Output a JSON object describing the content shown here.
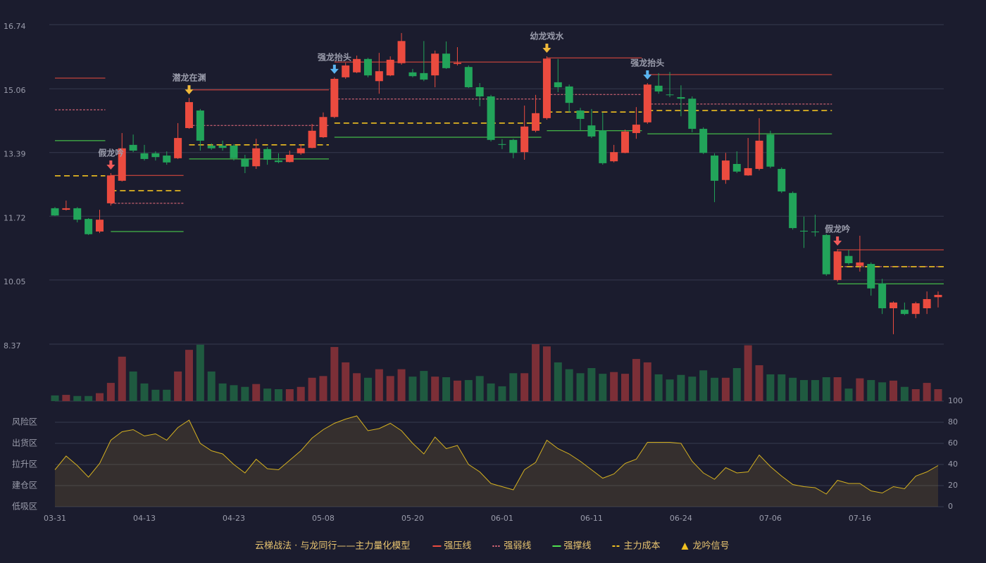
{
  "chart_data": {
    "type": "candlestick",
    "categories": [
      "03-31",
      null,
      null,
      null,
      null,
      null,
      null,
      null,
      "04-13",
      null,
      null,
      null,
      null,
      null,
      null,
      null,
      "04-23",
      null,
      null,
      null,
      null,
      null,
      null,
      null,
      "05-08",
      null,
      null,
      null,
      null,
      null,
      null,
      null,
      "05-20",
      null,
      null,
      null,
      null,
      null,
      null,
      null,
      "06-01",
      null,
      null,
      null,
      null,
      null,
      null,
      null,
      "06-11",
      null,
      null,
      null,
      null,
      null,
      null,
      null,
      "06-24",
      null,
      null,
      null,
      null,
      null,
      null,
      null,
      "07-06",
      null,
      null,
      null,
      null,
      null,
      null,
      null,
      "07-16",
      null,
      null,
      null,
      null,
      null,
      null,
      null
    ],
    "open": [
      11.93,
      11.89,
      11.93,
      11.65,
      11.32,
      12.06,
      12.65,
      13.59,
      13.37,
      13.37,
      13.31,
      13.24,
      14.03,
      14.49,
      13.57,
      13.57,
      13.57,
      13.22,
      13.03,
      13.48,
      13.18,
      13.14,
      13.37,
      13.51,
      13.79,
      14.32,
      15.36,
      15.49,
      15.84,
      15.26,
      15.41,
      15.73,
      15.49,
      15.47,
      15.41,
      15.98,
      15.71,
      15.63,
      15.1,
      14.86,
      13.61,
      13.72,
      13.4,
      13.96,
      14.29,
      15.23,
      15.12,
      14.49,
      14.1,
      13.97,
      13.16,
      13.38,
      13.9,
      14.18,
      15.14,
      14.91,
      14.84,
      14.8,
      14.01,
      13.31,
      12.67,
      13.09,
      12.79,
      12.96,
      13.86,
      12.96,
      12.33,
      11.34,
      11.32,
      11.23,
      10.05,
      10.68,
      10.42,
      10.47,
      9.96,
      9.31,
      9.27,
      9.16,
      9.31,
      9.6
    ],
    "close": [
      11.74,
      11.93,
      11.63,
      11.25,
      11.63,
      12.79,
      13.5,
      13.44,
      13.22,
      13.27,
      13.13,
      13.77,
      14.71,
      13.7,
      13.5,
      13.51,
      13.24,
      13.02,
      13.5,
      13.2,
      13.14,
      13.33,
      13.5,
      13.96,
      14.32,
      15.32,
      15.67,
      15.84,
      15.41,
      15.52,
      15.82,
      16.31,
      15.39,
      15.3,
      15.98,
      15.6,
      15.74,
      15.1,
      14.86,
      13.72,
      13.59,
      13.38,
      14.07,
      14.42,
      15.85,
      15.1,
      14.69,
      14.27,
      13.81,
      13.11,
      13.4,
      13.94,
      14.12,
      15.17,
      14.99,
      14.9,
      14.8,
      14.01,
      13.38,
      12.65,
      13.18,
      12.89,
      12.98,
      13.7,
      13.02,
      12.37,
      11.41,
      11.32,
      11.3,
      10.2,
      10.8,
      10.49,
      10.51,
      9.83,
      9.31,
      9.46,
      9.16,
      9.44,
      9.55,
      9.66
    ],
    "high": [
      11.96,
      12.13,
      11.96,
      11.67,
      11.89,
      12.85,
      13.9,
      13.86,
      13.59,
      13.42,
      13.42,
      14.16,
      14.82,
      14.53,
      13.63,
      13.7,
      13.61,
      13.33,
      13.75,
      13.53,
      13.37,
      13.44,
      13.61,
      14.14,
      14.44,
      15.36,
      15.74,
      15.93,
      15.87,
      16.0,
      15.91,
      16.52,
      15.58,
      16.31,
      16.06,
      16.3,
      16.15,
      15.67,
      15.21,
      14.9,
      13.74,
      13.75,
      14.62,
      14.9,
      15.91,
      15.84,
      15.17,
      14.56,
      14.53,
      14.44,
      13.59,
      13.99,
      14.58,
      15.21,
      15.47,
      15.5,
      15.15,
      14.86,
      14.05,
      13.37,
      13.38,
      13.42,
      13.77,
      14.29,
      13.96,
      13.0,
      12.37,
      11.71,
      11.76,
      11.26,
      10.86,
      10.84,
      11.21,
      10.51,
      10.08,
      9.49,
      9.46,
      9.48,
      9.75,
      9.75
    ],
    "low": [
      11.73,
      11.87,
      11.56,
      11.23,
      11.28,
      12.0,
      12.63,
      13.4,
      13.18,
      13.18,
      13.07,
      13.22,
      14.01,
      13.44,
      13.46,
      13.44,
      13.18,
      12.85,
      12.96,
      13.07,
      13.11,
      13.13,
      13.33,
      13.5,
      13.77,
      14.29,
      15.32,
      15.47,
      15.36,
      14.93,
      15.39,
      15.69,
      15.36,
      15.26,
      15.1,
      15.58,
      15.67,
      15.08,
      14.6,
      13.68,
      13.48,
      13.24,
      13.2,
      13.92,
      14.25,
      14.97,
      14.44,
      13.97,
      13.77,
      13.07,
      13.13,
      13.37,
      13.75,
      14.14,
      14.93,
      14.84,
      14.34,
      13.92,
      13.35,
      12.09,
      12.57,
      12.85,
      12.78,
      12.92,
      12.98,
      12.33,
      11.37,
      10.89,
      11.19,
      10.16,
      10.01,
      10.45,
      10.27,
      9.64,
      9.16,
      8.63,
      9.13,
      9.05,
      9.16,
      9.33
    ],
    "ylim": [
      8.37,
      16.74
    ],
    "yticks": [
      16.74,
      15.06,
      13.39,
      11.72,
      10.05,
      8.37
    ],
    "grid": true,
    "up_color": "#eb4b3f",
    "down_color": "#22a45a",
    "volume": {
      "values": [
        10,
        11,
        9,
        9,
        14,
        32,
        78,
        52,
        31,
        20,
        20,
        52,
        90,
        99,
        52,
        31,
        28,
        25,
        30,
        22,
        21,
        21,
        25,
        41,
        44,
        95,
        68,
        49,
        41,
        56,
        44,
        56,
        43,
        53,
        43,
        42,
        36,
        37,
        44,
        31,
        26,
        49,
        49,
        100,
        96,
        68,
        56,
        49,
        58,
        48,
        51,
        48,
        74,
        68,
        47,
        38,
        46,
        43,
        54,
        41,
        41,
        58,
        98,
        63,
        47,
        47,
        41,
        37,
        37,
        42,
        42,
        22,
        40,
        37,
        33,
        36,
        25,
        21,
        32,
        21
      ],
      "ylim": [
        0,
        100
      ],
      "up_color": "#7c2f37",
      "down_color": "#1f5a40"
    },
    "levels": [
      {
        "start": 0,
        "end": 4,
        "values": [
          15.34,
          14.51,
          13.7,
          12.78
        ]
      },
      {
        "start": 5,
        "end": 11,
        "values": [
          12.79,
          12.06,
          11.32,
          12.39
        ]
      },
      {
        "start": 12,
        "end": 24,
        "values": [
          15.03,
          14.1,
          13.22,
          13.59
        ]
      },
      {
        "start": 25,
        "end": 43,
        "values": [
          15.76,
          14.79,
          13.79,
          14.16
        ]
      },
      {
        "start": 44,
        "end": 52,
        "values": [
          15.87,
          14.91,
          13.96,
          14.45
        ]
      },
      {
        "start": 53,
        "end": 69,
        "values": [
          15.43,
          14.66,
          13.88,
          14.49
        ]
      },
      {
        "start": 70,
        "end": 79,
        "values": [
          10.84,
          10.4,
          9.95,
          10.4
        ]
      }
    ],
    "signals": [
      {
        "index": 5,
        "label": "假龙吟",
        "color": "#f05a5a"
      },
      {
        "index": 12,
        "label": "潜龙在渊",
        "color": "#f0b93a"
      },
      {
        "index": 25,
        "label": "强龙抬头",
        "color": "#5ab4f0"
      },
      {
        "index": 44,
        "label": "幼龙戏水",
        "color": "#f0b93a"
      },
      {
        "index": 53,
        "label": "强龙抬头",
        "color": "#5ab4f0"
      },
      {
        "index": 70,
        "label": "假龙吟",
        "color": "#f05a5a"
      }
    ],
    "indicator": {
      "values": [
        35,
        48,
        39,
        28,
        41,
        63,
        71,
        73,
        67,
        69,
        63,
        75,
        82,
        60,
        53,
        50,
        40,
        32,
        45,
        36,
        35,
        44,
        53,
        65,
        73,
        79,
        83,
        86,
        72,
        74,
        79,
        72,
        60,
        50,
        66,
        55,
        58,
        40,
        33,
        22,
        19,
        16,
        35,
        42,
        63,
        55,
        50,
        43,
        35,
        27,
        31,
        41,
        45,
        61,
        61,
        61,
        60,
        43,
        32,
        26,
        37,
        32,
        33,
        49,
        38,
        29,
        21,
        19,
        18,
        12,
        25,
        22,
        22,
        15,
        13,
        19,
        17,
        29,
        33,
        39
      ],
      "ylim": [
        0,
        100
      ],
      "yticks": [
        0,
        20,
        40,
        60,
        80,
        100
      ],
      "ytick_colors": [
        "#e84848",
        "#f08040",
        "#4a90e2",
        "#e040e0",
        "#f0a030",
        "#3ccf3c"
      ],
      "color": "#d4b020",
      "zones": [
        {
          "value": 80,
          "label": "风险区",
          "color": "#f0a030"
        },
        {
          "value": 60,
          "label": "出货区",
          "color": "#e040e0"
        },
        {
          "value": 40,
          "label": "拉升区",
          "color": "#4a90e2"
        },
        {
          "value": 20,
          "label": "建仓区",
          "color": "#e84848"
        },
        {
          "value": 0,
          "label": "低吸区",
          "color": "#e84848"
        }
      ]
    },
    "legend": {
      "title": "云梯战法 · 与龙同行——主力量化模型",
      "items": [
        {
          "name": "强压线",
          "color": "#eb4b3f",
          "style": "solid"
        },
        {
          "name": "强弱线",
          "color": "#f07080",
          "style": "dotted"
        },
        {
          "name": "强撑线",
          "color": "#4ee04e",
          "style": "solid"
        },
        {
          "name": "主力成本",
          "color": "#f0c020",
          "style": "dashed"
        },
        {
          "name": "龙吟信号",
          "color": "#f0c020",
          "style": "triangle"
        }
      ]
    }
  }
}
